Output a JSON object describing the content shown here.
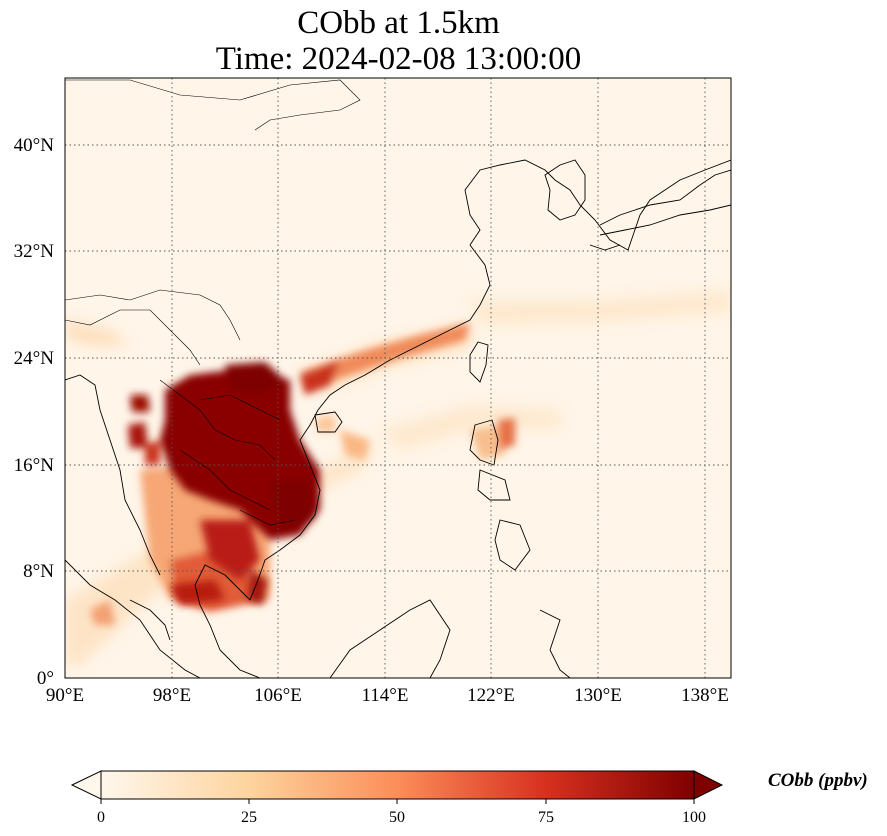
{
  "title": {
    "line1": "CObb at 1.5km",
    "line2": "Time: 2024-02-08 13:00:00"
  },
  "map": {
    "projection": "PlateCarree",
    "lon_range": [
      90,
      140
    ],
    "lat_range": [
      0,
      45
    ],
    "lon_ticks": [
      "90°E",
      "98°E",
      "106°E",
      "114°E",
      "122°E",
      "130°E",
      "138°E"
    ],
    "lat_ticks": [
      "0°",
      "8°N",
      "16°N",
      "24°N",
      "32°N",
      "40°N"
    ],
    "gridlines": "dotted",
    "coastlines": true,
    "borders": true
  },
  "colorbar": {
    "colormap": "OrRd",
    "min": 0,
    "max": 100,
    "extend": "both",
    "ticks": [
      "0",
      "25",
      "50",
      "75",
      "100"
    ],
    "label": "CObb (ppbv)",
    "colors": [
      "#fff7ec",
      "#fdd49e",
      "#fc8d59",
      "#d7301f",
      "#7f0000"
    ]
  }
}
